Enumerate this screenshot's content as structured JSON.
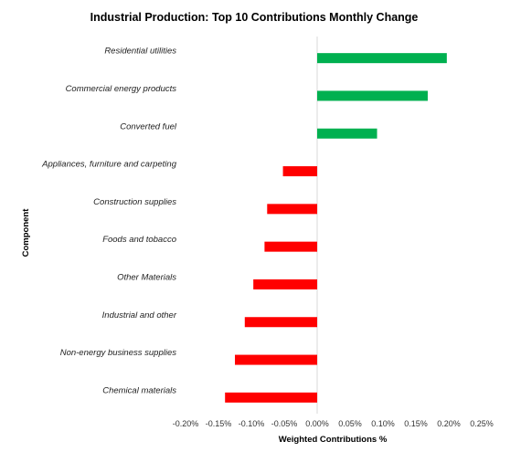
{
  "chart_data": {
    "type": "bar",
    "orientation": "horizontal",
    "title": "Industrial Production: Top 10 Contributions Monthly Change",
    "xlabel": "Weighted Contributions %",
    "ylabel": "Component",
    "categories": [
      "Residential utilities",
      "Commercial energy products",
      "Converted fuel",
      "Appliances, furniture and carpeting",
      "Construction supplies",
      "Foods and tobacco",
      "Other Materials",
      "Industrial and other",
      "Non-energy business supplies",
      "Chemical materials"
    ],
    "values": [
      0.197,
      0.168,
      0.091,
      -0.052,
      -0.076,
      -0.08,
      -0.097,
      -0.11,
      -0.125,
      -0.14
    ],
    "xlim": [
      -0.2,
      0.25
    ],
    "xticks": [
      "-0.20%",
      "-0.15%",
      "-0.10%",
      "-0.05%",
      "0.00%",
      "0.05%",
      "0.10%",
      "0.15%",
      "0.20%",
      "0.25%"
    ],
    "grid": false,
    "legend": "none",
    "colors": {
      "positive": "#00b050",
      "negative": "#ff0000",
      "zero_line": "#d9d9d9"
    }
  }
}
